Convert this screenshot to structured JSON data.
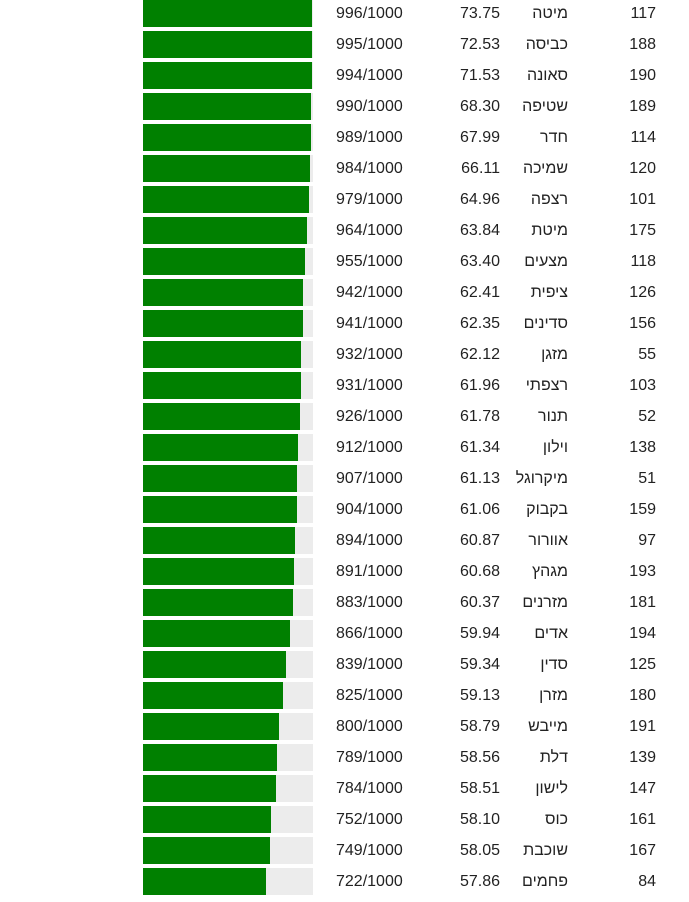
{
  "colors": {
    "bar_fill": "#008000",
    "bar_track": "#ececec"
  },
  "rows": [
    {
      "score": "996/1000",
      "fraction": 0.996,
      "value": "73.75",
      "word": "מיטה",
      "rank": "117"
    },
    {
      "score": "995/1000",
      "fraction": 0.995,
      "value": "72.53",
      "word": "כביסה",
      "rank": "188"
    },
    {
      "score": "994/1000",
      "fraction": 0.994,
      "value": "71.53",
      "word": "סאונה",
      "rank": "190"
    },
    {
      "score": "990/1000",
      "fraction": 0.99,
      "value": "68.30",
      "word": "שטיפה",
      "rank": "189"
    },
    {
      "score": "989/1000",
      "fraction": 0.989,
      "value": "67.99",
      "word": "חדר",
      "rank": "114"
    },
    {
      "score": "984/1000",
      "fraction": 0.984,
      "value": "66.11",
      "word": "שמיכה",
      "rank": "120"
    },
    {
      "score": "979/1000",
      "fraction": 0.979,
      "value": "64.96",
      "word": "רצפה",
      "rank": "101"
    },
    {
      "score": "964/1000",
      "fraction": 0.964,
      "value": "63.84",
      "word": "מיטת",
      "rank": "175"
    },
    {
      "score": "955/1000",
      "fraction": 0.955,
      "value": "63.40",
      "word": "מצעים",
      "rank": "118"
    },
    {
      "score": "942/1000",
      "fraction": 0.942,
      "value": "62.41",
      "word": "ציפית",
      "rank": "126"
    },
    {
      "score": "941/1000",
      "fraction": 0.941,
      "value": "62.35",
      "word": "סדינים",
      "rank": "156"
    },
    {
      "score": "932/1000",
      "fraction": 0.932,
      "value": "62.12",
      "word": "מזגן",
      "rank": "55"
    },
    {
      "score": "931/1000",
      "fraction": 0.931,
      "value": "61.96",
      "word": "רצפתי",
      "rank": "103"
    },
    {
      "score": "926/1000",
      "fraction": 0.926,
      "value": "61.78",
      "word": "תנור",
      "rank": "52"
    },
    {
      "score": "912/1000",
      "fraction": 0.912,
      "value": "61.34",
      "word": "וילון",
      "rank": "138"
    },
    {
      "score": "907/1000",
      "fraction": 0.907,
      "value": "61.13",
      "word": "מיקרוגל",
      "rank": "51"
    },
    {
      "score": "904/1000",
      "fraction": 0.904,
      "value": "61.06",
      "word": "בקבוק",
      "rank": "159"
    },
    {
      "score": "894/1000",
      "fraction": 0.894,
      "value": "60.87",
      "word": "אוורור",
      "rank": "97"
    },
    {
      "score": "891/1000",
      "fraction": 0.891,
      "value": "60.68",
      "word": "מגהץ",
      "rank": "193"
    },
    {
      "score": "883/1000",
      "fraction": 0.883,
      "value": "60.37",
      "word": "מזרנים",
      "rank": "181"
    },
    {
      "score": "866/1000",
      "fraction": 0.866,
      "value": "59.94",
      "word": "אדים",
      "rank": "194"
    },
    {
      "score": "839/1000",
      "fraction": 0.839,
      "value": "59.34",
      "word": "סדין",
      "rank": "125"
    },
    {
      "score": "825/1000",
      "fraction": 0.825,
      "value": "59.13",
      "word": "מזרן",
      "rank": "180"
    },
    {
      "score": "800/1000",
      "fraction": 0.8,
      "value": "58.79",
      "word": "מייבש",
      "rank": "191"
    },
    {
      "score": "789/1000",
      "fraction": 0.789,
      "value": "58.56",
      "word": "דלת",
      "rank": "139"
    },
    {
      "score": "784/1000",
      "fraction": 0.784,
      "value": "58.51",
      "word": "לישון",
      "rank": "147"
    },
    {
      "score": "752/1000",
      "fraction": 0.752,
      "value": "58.10",
      "word": "כוס",
      "rank": "161"
    },
    {
      "score": "749/1000",
      "fraction": 0.749,
      "value": "58.05",
      "word": "שוכבת",
      "rank": "167"
    },
    {
      "score": "722/1000",
      "fraction": 0.722,
      "value": "57.86",
      "word": "פחמים",
      "rank": "84"
    }
  ]
}
